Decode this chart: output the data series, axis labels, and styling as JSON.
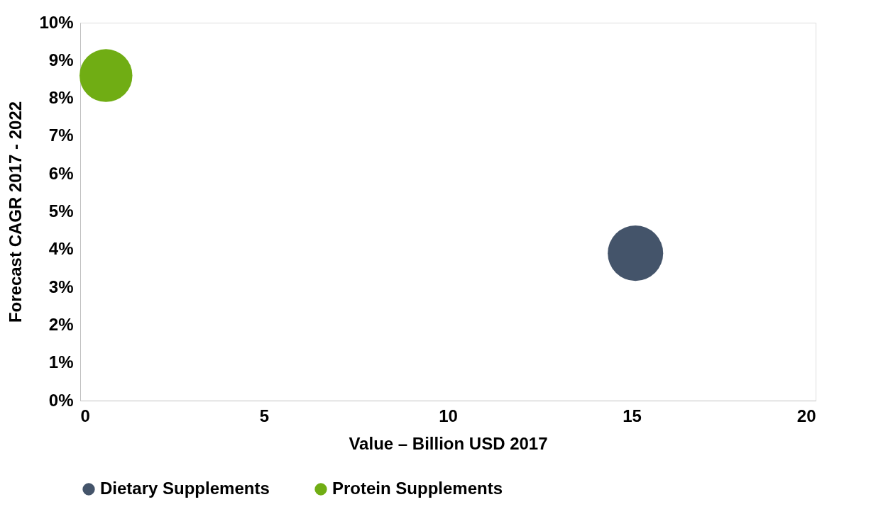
{
  "chart_data": {
    "type": "bubble",
    "xlabel": "Value – Billion USD 2017",
    "ylabel": "Forecast CAGR 2017 - 2022",
    "xlim": [
      0,
      20
    ],
    "xticks": [
      0,
      5,
      10,
      15,
      20
    ],
    "ylim": [
      0,
      10
    ],
    "yticks": [
      {
        "value": 0,
        "label": "0%"
      },
      {
        "value": 1,
        "label": "1%"
      },
      {
        "value": 2,
        "label": "2%"
      },
      {
        "value": 3,
        "label": "3%"
      },
      {
        "value": 4,
        "label": "4%"
      },
      {
        "value": 5,
        "label": "5%"
      },
      {
        "value": 6,
        "label": "6%"
      },
      {
        "value": 7,
        "label": "7%"
      },
      {
        "value": 8,
        "label": "8%"
      },
      {
        "value": 9,
        "label": "9%"
      },
      {
        "value": 10,
        "label": "10%"
      }
    ],
    "series": [
      {
        "name": "Dietary Supplements",
        "color": "#44546a",
        "x": [
          15.1
        ],
        "values": [
          3.9
        ],
        "sizes": [
          1
        ]
      },
      {
        "name": "Protein Supplements",
        "color": "#70ad14",
        "x": [
          0.7
        ],
        "values": [
          8.6
        ],
        "sizes": [
          0.91
        ]
      }
    ],
    "grid": false,
    "legend": "bottom"
  }
}
